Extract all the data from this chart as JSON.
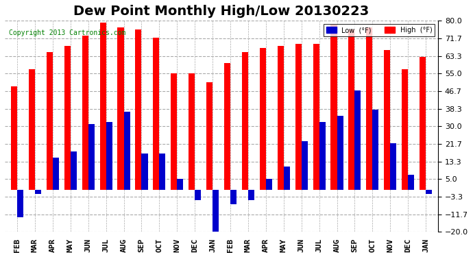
{
  "title": "Dew Point Monthly High/Low 20130223",
  "copyright": "Copyright 2013 Cartronics.com",
  "months": [
    "FEB",
    "MAR",
    "APR",
    "MAY",
    "JUN",
    "JUL",
    "AUG",
    "SEP",
    "OCT",
    "NOV",
    "DEC",
    "JAN",
    "FEB",
    "MAR",
    "APR",
    "MAY",
    "JUN",
    "JUL",
    "AUG",
    "SEP",
    "OCT",
    "NOV",
    "DEC",
    "JAN"
  ],
  "high_values": [
    49,
    57,
    65,
    68,
    73,
    79,
    77,
    76,
    72,
    55,
    55,
    51,
    60,
    65,
    67,
    68,
    69,
    69,
    78,
    76,
    77,
    66,
    57,
    63
  ],
  "low_values": [
    -13,
    -2,
    15,
    18,
    31,
    32,
    37,
    17,
    17,
    5,
    -5,
    -20,
    -7,
    -5,
    5,
    11,
    23,
    32,
    35,
    47,
    38,
    22,
    7,
    -2
  ],
  "high_color": "#FF0000",
  "low_color": "#0000CC",
  "bg_color": "#ffffff",
  "grid_color": "#aaaaaa",
  "ylim": [
    -20.0,
    80.0
  ],
  "yticks": [
    -20.0,
    -11.7,
    -3.3,
    5.0,
    13.3,
    21.7,
    30.0,
    38.3,
    46.7,
    55.0,
    63.3,
    71.7,
    80.0
  ],
  "title_fontsize": 14,
  "bar_width": 0.35,
  "legend_low_label": "Low  (°F)",
  "legend_high_label": "High  (°F)"
}
